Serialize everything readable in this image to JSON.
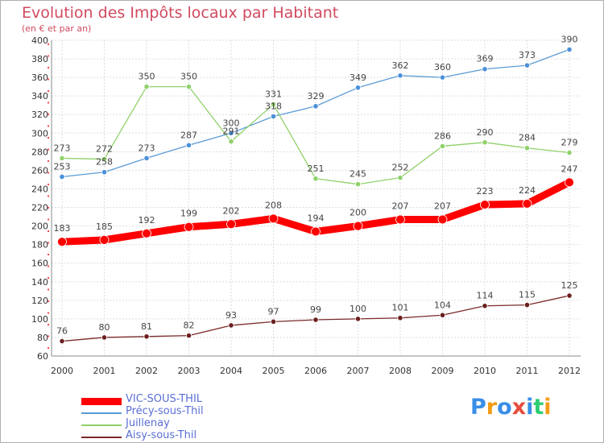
{
  "chart_data": {
    "type": "line",
    "title": "Evolution des Impôts locaux par Habitant",
    "subtitle": "(en € et par an)",
    "x": [
      "2000",
      "2001",
      "2002",
      "2003",
      "2004",
      "2005",
      "2006",
      "2007",
      "2008",
      "2009",
      "2010",
      "2011",
      "2012"
    ],
    "ylim": [
      60,
      400
    ],
    "yticks": [
      60,
      80,
      100,
      120,
      140,
      160,
      180,
      200,
      220,
      240,
      260,
      280,
      300,
      320,
      340,
      360,
      380,
      400
    ],
    "grid": true,
    "legend_position": "bottom-left",
    "series": [
      {
        "name": "VIC-SOUS-THIL",
        "color": "#ff0000",
        "values": [
          183,
          185,
          192,
          199,
          202,
          208,
          194,
          200,
          207,
          207,
          223,
          224,
          247
        ]
      },
      {
        "name": "Précy-sous-Thil",
        "color": "#5b9bd5",
        "values": [
          253,
          258,
          273,
          287,
          300,
          318,
          329,
          349,
          362,
          360,
          369,
          373,
          390
        ]
      },
      {
        "name": "Juillenay",
        "color": "#8fd16a",
        "values": [
          273,
          272,
          350,
          350,
          291,
          331,
          251,
          245,
          252,
          286,
          290,
          284,
          279
        ]
      },
      {
        "name": "Aisy-sous-Thil",
        "color": "#7b2a2a",
        "values": [
          76,
          80,
          81,
          82,
          93,
          97,
          99,
          100,
          101,
          104,
          114,
          115,
          125
        ]
      }
    ]
  },
  "logo": {
    "text": "Proxiti",
    "letters": [
      "P",
      "r",
      "o",
      "x",
      "i",
      "t",
      "i"
    ],
    "colors": [
      "#3a8ee6",
      "#f39c12",
      "#3a8ee6",
      "#e74c3c",
      "#3a8ee6",
      "#2ecc71",
      "#f39c12"
    ]
  }
}
